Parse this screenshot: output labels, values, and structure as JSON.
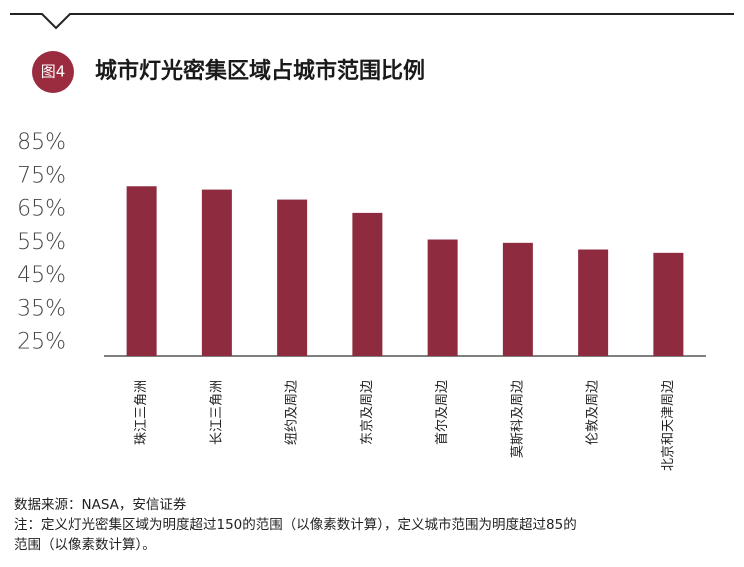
{
  "chart_data": {
    "type": "bar",
    "badge": "图4",
    "title": "城市灯光密集区域占城市范围比例",
    "categories": [
      "珠江三角洲",
      "长江三角洲",
      "纽约及周边",
      "东京及周边",
      "首尔及周边",
      "莫斯科及周边",
      "伦敦及周边",
      "北京和天津周边"
    ],
    "values": [
      72,
      71,
      68,
      64,
      56,
      55,
      53,
      52
    ],
    "color": "#8e2b3f",
    "ylim": [
      21,
      85
    ],
    "yticks": [
      {
        "value": 25,
        "label": "25%"
      },
      {
        "value": 35,
        "label": "35%"
      },
      {
        "value": 45,
        "label": "45%"
      },
      {
        "value": 55,
        "label": "55%"
      },
      {
        "value": 65,
        "label": "65%"
      },
      {
        "value": 75,
        "label": "75%"
      },
      {
        "value": 85,
        "label": "85%"
      }
    ],
    "grid": false,
    "notes": [
      "数据来源：NASA，安信证券",
      "注：定义灯光密集区域为明度超过150的范围（以像素数计算），定义城市范围为明度超过85的",
      "范围（以像素数计算）。"
    ]
  }
}
